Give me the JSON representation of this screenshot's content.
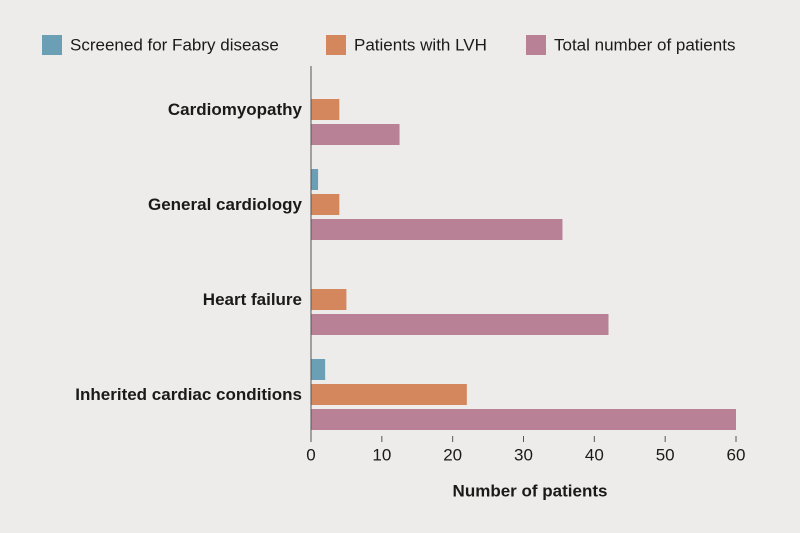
{
  "chart_data": {
    "type": "hbar",
    "categories": [
      "Cardiomyopathy",
      "General cardiology",
      "Heart failure",
      "Inherited cardiac conditions"
    ],
    "series": [
      {
        "name": "Screened for Fabry disease",
        "color": "#6a9fb5",
        "values": [
          0,
          1,
          0,
          2
        ]
      },
      {
        "name": "Patients with LVH",
        "color": "#d4875c",
        "values": [
          4,
          4,
          5,
          22
        ]
      },
      {
        "name": "Total number of patients",
        "color": "#b88196",
        "values": [
          12.5,
          35.5,
          42,
          60
        ]
      }
    ],
    "xlabel": "Number of patients",
    "xlim": [
      0,
      60
    ],
    "xticks": [
      0,
      10,
      20,
      30,
      40,
      50,
      60
    ],
    "legend": "top"
  }
}
